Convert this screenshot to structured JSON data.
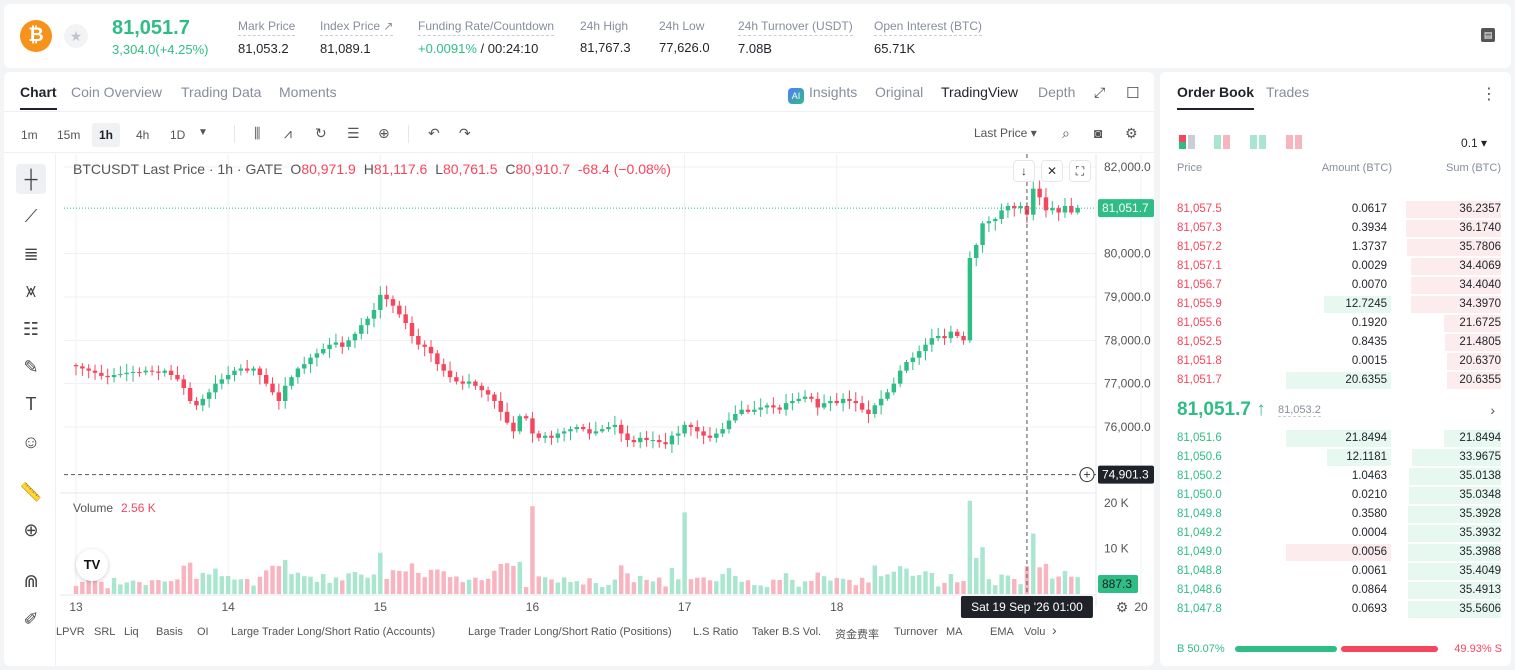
{
  "header": {
    "coin_symbol_glyph": "₿",
    "last_price": "81,051.7",
    "change": "3,304.0(+4.25%)",
    "stats": [
      {
        "label": "Mark Price",
        "value": "81,053.2"
      },
      {
        "label": "Index Price ↗",
        "value": "81,089.1"
      },
      {
        "label": "Funding Rate/Countdown",
        "value_green": "+0.0091%",
        "value": " / 00:24:10"
      },
      {
        "label": "24h High",
        "value": "81,767.3"
      },
      {
        "label": "24h Low",
        "value": "77,626.0"
      },
      {
        "label": "24h Turnover (USDT)",
        "value": "7.08B"
      },
      {
        "label": "Open Interest (BTC)",
        "value": "65.71K"
      }
    ]
  },
  "chart_tabs": {
    "left": [
      "Chart",
      "Coin Overview",
      "Trading Data",
      "Moments"
    ],
    "right": [
      "Insights",
      "Original",
      "TradingView",
      "Depth"
    ],
    "ai_badge": "AI"
  },
  "toolbar": {
    "intervals": [
      "1m",
      "15m",
      "1h",
      "4h",
      "1D"
    ],
    "active_interval": "1h",
    "price_type": "Last Price ▾"
  },
  "chart_legend": {
    "symbol": "BTCUSDT Last Price · 1h · GATE",
    "o_label": "O",
    "o": "80,971.9",
    "h_label": "H",
    "h": "81,117.6",
    "l_label": "L",
    "l": "80,761.5",
    "c_label": "C",
    "c": "80,910.7",
    "chg": "-68.4 (−0.08%)"
  },
  "volume_legend": {
    "label": "Volume",
    "value": "2.56 K"
  },
  "tv_logo": "TV",
  "chart_data": {
    "type": "candlestick",
    "symbol": "BTCUSDT",
    "interval": "1h",
    "y_ticks": [
      "82,000.0",
      "80,000.0",
      "79,000.0",
      "78,000.0",
      "77,000.0",
      "76,000.0"
    ],
    "y_tick_values": [
      82000,
      80000,
      79000,
      78000,
      77000,
      76000
    ],
    "ylim": [
      74500,
      82300
    ],
    "x_ticks": [
      "13",
      "14",
      "15",
      "16",
      "17",
      "18",
      "20"
    ],
    "x_tick_index": [
      0,
      24,
      48,
      72,
      96,
      120,
      168
    ],
    "last_price_label": "81,051.7",
    "last_price": 81051.7,
    "crosshair_label": "74,901.3",
    "crosshair_price": 74901.3,
    "crosshair_time": "Sat 19 Sep '26   01:00",
    "crosshair_index": 150,
    "volume_ticks": [
      "20 K",
      "10 K"
    ],
    "volume_tick_values": [
      20000,
      10000
    ],
    "volume_ylim": [
      0,
      22000
    ],
    "volume_last": "887.3",
    "volume_last_value": 887.3,
    "closes": [
      77400,
      77350,
      77300,
      77250,
      77180,
      77150,
      77200,
      77220,
      77250,
      77270,
      77260,
      77300,
      77280,
      77250,
      77300,
      77200,
      77100,
      76900,
      76600,
      76500,
      76650,
      76800,
      77000,
      77100,
      77200,
      77300,
      77350,
      77300,
      77350,
      77200,
      77000,
      76800,
      76600,
      76950,
      77150,
      77350,
      77450,
      77600,
      77700,
      77800,
      77900,
      77950,
      77850,
      78000,
      78150,
      78350,
      78500,
      78700,
      79050,
      78950,
      78800,
      78600,
      78400,
      78100,
      77900,
      77850,
      77700,
      77450,
      77300,
      77150,
      77050,
      77000,
      77050,
      76950,
      76850,
      76750,
      76600,
      76350,
      76100,
      75900,
      76250,
      76200,
      75850,
      75750,
      75800,
      75750,
      75850,
      75900,
      75950,
      76000,
      75950,
      75850,
      75900,
      75950,
      76000,
      76050,
      75850,
      75700,
      75650,
      75750,
      75700,
      75700,
      75650,
      75600,
      75800,
      75850,
      76050,
      76000,
      75900,
      75800,
      75750,
      75850,
      75950,
      76150,
      76300,
      76400,
      76350,
      76400,
      76450,
      76500,
      76450,
      76400,
      76550,
      76600,
      76650,
      76700,
      76650,
      76450,
      76550,
      76600,
      76550,
      76650,
      76600,
      76550,
      76400,
      76300,
      76500,
      76650,
      76800,
      77000,
      77300,
      77500,
      77600,
      77750,
      77900,
      78050,
      78100,
      78050,
      78200,
      78100,
      78000,
      79900,
      80200,
      80700,
      80750,
      80800,
      81000,
      81100,
      81050,
      81100,
      80900,
      81500,
      81300,
      81000,
      81050,
      80950,
      81100,
      80950,
      81051.7
    ],
    "series_note_colors": {
      "up": "#2ebd85",
      "down": "#f6465d"
    }
  },
  "indicators": [
    "LPVR",
    "SRL",
    "Liq",
    "Basis",
    "OI",
    "Large Trader Long/Short Ratio (Accounts)",
    "Large Trader Long/Short Ratio (Positions)",
    "L.S Ratio",
    "Taker B.S Vol.",
    "资金费率",
    "Turnover",
    "MA",
    "EMA",
    "Volu"
  ],
  "orderbook": {
    "tabs": [
      "Order Book",
      "Trades"
    ],
    "tick_size": "0.1 ▾",
    "columns": [
      "Price",
      "Amount (BTC)",
      "Sum (BTC)"
    ],
    "asks": [
      {
        "price": "81,057.5",
        "amount": "0.0617",
        "sum": "36.2357",
        "sum_value": 36.2357,
        "amount_value": 0.0617
      },
      {
        "price": "81,057.3",
        "amount": "0.3934",
        "sum": "36.1740",
        "sum_value": 36.174,
        "amount_value": 0.3934
      },
      {
        "price": "81,057.2",
        "amount": "1.3737",
        "sum": "35.7806",
        "sum_value": 35.7806,
        "amount_value": 1.3737
      },
      {
        "price": "81,057.1",
        "amount": "0.0029",
        "sum": "34.4069",
        "sum_value": 34.4069,
        "amount_value": 0.0029
      },
      {
        "price": "81,056.7",
        "amount": "0.0070",
        "sum": "34.4040",
        "sum_value": 34.404,
        "amount_value": 0.007
      },
      {
        "price": "81,055.9",
        "amount": "12.7245",
        "sum": "34.3970",
        "sum_value": 34.397,
        "amount_value": 12.7245
      },
      {
        "price": "81,055.6",
        "amount": "0.1920",
        "sum": "21.6725",
        "sum_value": 21.6725,
        "amount_value": 0.192
      },
      {
        "price": "81,052.5",
        "amount": "0.8435",
        "sum": "21.4805",
        "sum_value": 21.4805,
        "amount_value": 0.8435
      },
      {
        "price": "81,051.8",
        "amount": "0.0015",
        "sum": "20.6370",
        "sum_value": 20.637,
        "amount_value": 0.0015
      },
      {
        "price": "81,051.7",
        "amount": "20.6355",
        "sum": "20.6355",
        "sum_value": 20.6355,
        "amount_value": 20.6355
      }
    ],
    "mid_price": "81,051.7 ↑",
    "mark_price": "81,053.2",
    "bids": [
      {
        "price": "81,051.6",
        "amount": "21.8494",
        "sum": "21.8494",
        "sum_value": 21.8494,
        "amount_value": 21.8494
      },
      {
        "price": "81,050.6",
        "amount": "12.1181",
        "sum": "33.9675",
        "sum_value": 33.9675,
        "amount_value": 12.1181
      },
      {
        "price": "81,050.2",
        "amount": "1.0463",
        "sum": "35.0138",
        "sum_value": 35.0138,
        "amount_value": 1.0463
      },
      {
        "price": "81,050.0",
        "amount": "0.0210",
        "sum": "35.0348",
        "sum_value": 35.0348,
        "amount_value": 0.021
      },
      {
        "price": "81,049.8",
        "amount": "0.3580",
        "sum": "35.3928",
        "sum_value": 35.3928,
        "amount_value": 0.358
      },
      {
        "price": "81,049.2",
        "amount": "0.0004",
        "sum": "35.3932",
        "sum_value": 35.3932,
        "amount_value": 0.0004
      },
      {
        "price": "81,049.0",
        "amount": "0.0056",
        "sum": "35.3988",
        "sum_value": 35.3988,
        "amount_value": 0.0056,
        "amount_color": "#f6465d"
      },
      {
        "price": "81,048.8",
        "amount": "0.0061",
        "sum": "35.4049",
        "sum_value": 35.4049,
        "amount_value": 0.0061
      },
      {
        "price": "81,048.6",
        "amount": "0.0864",
        "sum": "35.4913",
        "sum_value": 35.4913,
        "amount_value": 0.0864
      },
      {
        "price": "81,047.8",
        "amount": "0.0693",
        "sum": "35.5606",
        "sum_value": 35.5606,
        "amount_value": 0.0693
      }
    ],
    "buy_ratio": "B 50.07%",
    "sell_ratio": "49.93% S",
    "buy_ratio_value": 50.07
  },
  "colors": {
    "up": "#2ebd85",
    "down": "#f6465d",
    "accent": "#1f2329"
  }
}
